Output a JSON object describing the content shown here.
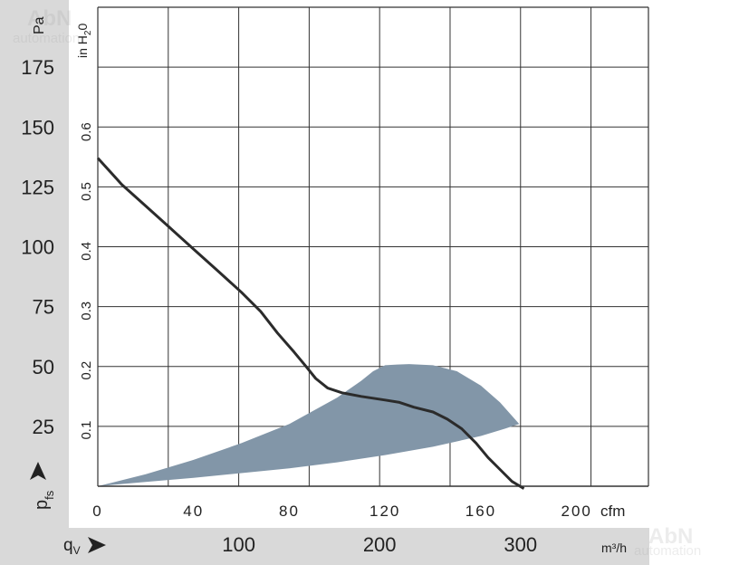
{
  "chart_data": {
    "type": "line",
    "x_unit": "cfm",
    "x_ticks": [
      0,
      40,
      80,
      120,
      160,
      200
    ],
    "xlim": [
      0,
      230
    ],
    "x2_unit": "m³/h",
    "x2_symbol_main": "q",
    "x2_symbol_sub": "V",
    "x2_ticks": [
      100,
      200,
      300
    ],
    "y_unit": "Pa",
    "y_ticks": [
      25,
      50,
      75,
      100,
      125,
      150,
      175
    ],
    "ylim": [
      0,
      200
    ],
    "y_symbol_main": "p",
    "y_symbol_sub": "fs",
    "y2_unit_main": "in H",
    "y2_unit_sub": "2",
    "y2_unit_tail": "0",
    "y2_ticks": [
      0.1,
      0.2,
      0.3,
      0.4,
      0.5,
      0.6
    ],
    "grid": true,
    "series": [
      {
        "x": [
          0,
          10,
          20,
          30,
          40,
          50,
          60,
          68,
          75,
          82,
          87,
          91,
          96,
          102,
          110,
          120,
          126,
          132,
          140,
          146,
          152,
          158,
          163,
          168,
          173,
          178
        ],
        "values": [
          137,
          126,
          117,
          108,
          99,
          90,
          81,
          73,
          64,
          56,
          50,
          45,
          41,
          39,
          37.5,
          36,
          35,
          33,
          31,
          28,
          24,
          18,
          12,
          7,
          2,
          -1
        ],
        "color": "#2b2b2b"
      }
    ],
    "shaded_region": {
      "upper_x": [
        0,
        20,
        40,
        60,
        80,
        100,
        110,
        115,
        120,
        125,
        130,
        140,
        150,
        160,
        168,
        176
      ],
      "upper_y": [
        0,
        5,
        11,
        18,
        26,
        37,
        44,
        48,
        50.5,
        50.8,
        51,
        50.5,
        48,
        42,
        35,
        26
      ],
      "lower_x": [
        176,
        170,
        160,
        140,
        120,
        100,
        80,
        60,
        40,
        20,
        0
      ],
      "lower_y": [
        26,
        24,
        21,
        16.5,
        13,
        10,
        7.5,
        5.5,
        3.5,
        1.8,
        0
      ],
      "color": "#8296a8"
    }
  },
  "watermark_text": "AbN",
  "watermark_subtext": "automation"
}
